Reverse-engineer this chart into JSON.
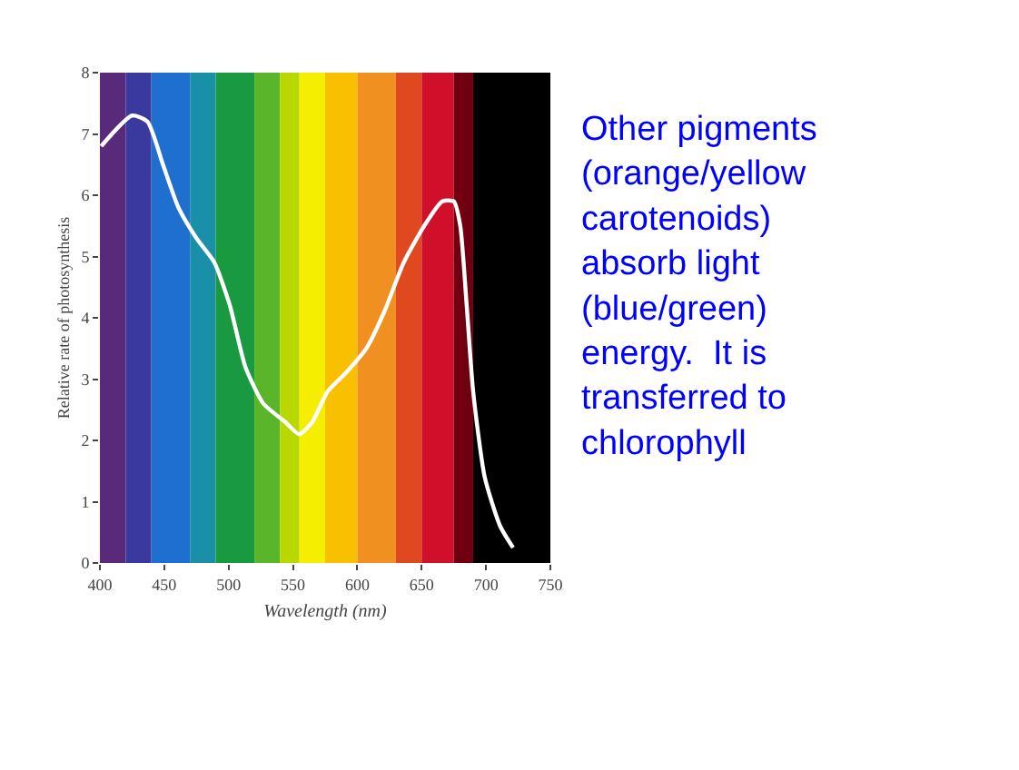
{
  "chart_data": {
    "type": "line",
    "xlabel": "Wavelength (nm)",
    "ylabel": "Relative rate of photosynthesis",
    "xlim": [
      400,
      750
    ],
    "xticks": [
      400,
      450,
      500,
      550,
      600,
      650,
      700,
      750
    ],
    "ylim": [
      0,
      8
    ],
    "yticks": [
      0,
      1,
      2,
      3,
      4,
      5,
      6,
      7,
      8
    ],
    "marker": "none",
    "line_style": "solid",
    "x": [
      401,
      425,
      437,
      449,
      461,
      475,
      489,
      501,
      513,
      527,
      544,
      555,
      565,
      577,
      591,
      607,
      621,
      636,
      652,
      666,
      675,
      680,
      685,
      690,
      699,
      711,
      721
    ],
    "series": [
      {
        "color": "#ffffff",
        "values": [
          6.8,
          7.3,
          7.2,
          6.5,
          5.8,
          5.3,
          4.9,
          4.2,
          3.2,
          2.6,
          2.3,
          2.1,
          2.3,
          2.8,
          3.1,
          3.5,
          4.1,
          4.9,
          5.5,
          5.9,
          5.9,
          5.5,
          4.2,
          2.8,
          1.4,
          0.6,
          0.25
        ]
      }
    ],
    "bands": [
      {
        "axis": "x",
        "from": 400,
        "to": 420,
        "color": "#5a2a7a"
      },
      {
        "axis": "x",
        "from": 420,
        "to": 440,
        "color": "#3a3a9e"
      },
      {
        "axis": "x",
        "from": 440,
        "to": 470,
        "color": "#1f6fd0"
      },
      {
        "axis": "x",
        "from": 470,
        "to": 490,
        "color": "#1a8fa8"
      },
      {
        "axis": "x",
        "from": 490,
        "to": 520,
        "color": "#1a9a40"
      },
      {
        "axis": "x",
        "from": 520,
        "to": 540,
        "color": "#5ab52a"
      },
      {
        "axis": "x",
        "from": 540,
        "to": 555,
        "color": "#b8d800"
      },
      {
        "axis": "x",
        "from": 555,
        "to": 575,
        "color": "#f5ee00"
      },
      {
        "axis": "x",
        "from": 575,
        "to": 600,
        "color": "#f8c000"
      },
      {
        "axis": "x",
        "from": 600,
        "to": 630,
        "color": "#f09020"
      },
      {
        "axis": "x",
        "from": 630,
        "to": 650,
        "color": "#e04820"
      },
      {
        "axis": "x",
        "from": 650,
        "to": 675,
        "color": "#d0102a"
      },
      {
        "axis": "x",
        "from": 675,
        "to": 690,
        "color": "#700010"
      },
      {
        "axis": "x",
        "from": 690,
        "to": 750,
        "color": "#000000"
      }
    ],
    "annotations": [
      "Other pigments\n(orange/yellow\ncarotenoids)\nabsorb light\n(blue/green)\nenergy.  It is\ntransferred to\nchlorophyll"
    ]
  }
}
